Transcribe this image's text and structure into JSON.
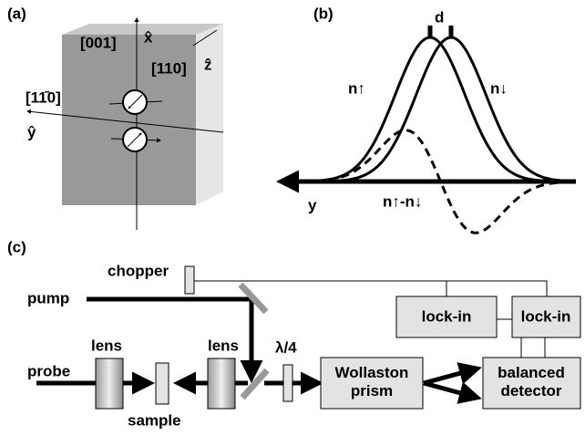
{
  "panel_a": {
    "label": "(a)",
    "axis_001": "[001]",
    "axis_x": "x̂",
    "axis_110": "[110]",
    "axis_z": "ẑ",
    "axis_1m10": "[11̄0]",
    "axis_y": "ŷ"
  },
  "panel_b": {
    "label": "(b)",
    "d": "d",
    "n_up": "n↑",
    "n_down": "n↓",
    "y": "y",
    "difference": "n↑-n↓"
  },
  "panel_c": {
    "label": "(c)",
    "chopper": "chopper",
    "pump": "pump",
    "probe": "probe",
    "lens_left": "lens",
    "lens_right": "lens",
    "sample": "sample",
    "waveplate": "λ/4",
    "wollaston": "Wollaston prism",
    "lockin_left": "lock-in",
    "lockin_right": "lock-in",
    "detector": "balanced detector"
  }
}
